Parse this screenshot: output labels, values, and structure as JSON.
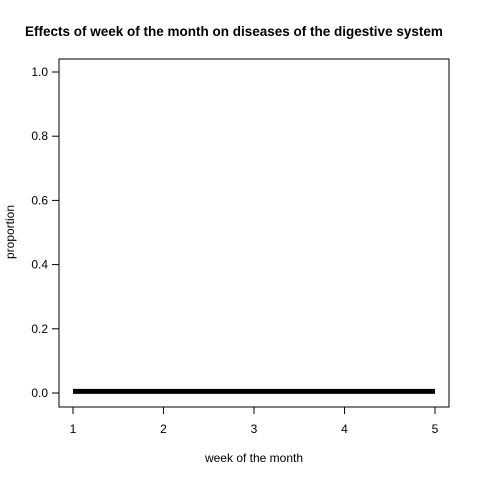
{
  "chart_data": {
    "type": "line",
    "title": "Effects of week of the month on diseases of the digestive system",
    "xlabel": "week of the month",
    "ylabel": "proportion",
    "x": [
      1,
      2,
      3,
      4,
      5
    ],
    "series": [
      {
        "values": [
          0.005,
          0.005,
          0.005,
          0.005,
          0.005
        ]
      }
    ],
    "xlim": [
      1,
      5
    ],
    "ylim": [
      0,
      1
    ],
    "xticks": [
      "1",
      "2",
      "3",
      "4",
      "5"
    ],
    "yticks": [
      "0.0",
      "0.2",
      "0.4",
      "0.6",
      "0.8",
      "1.0"
    ],
    "grid": false,
    "line_color": "#000000"
  }
}
